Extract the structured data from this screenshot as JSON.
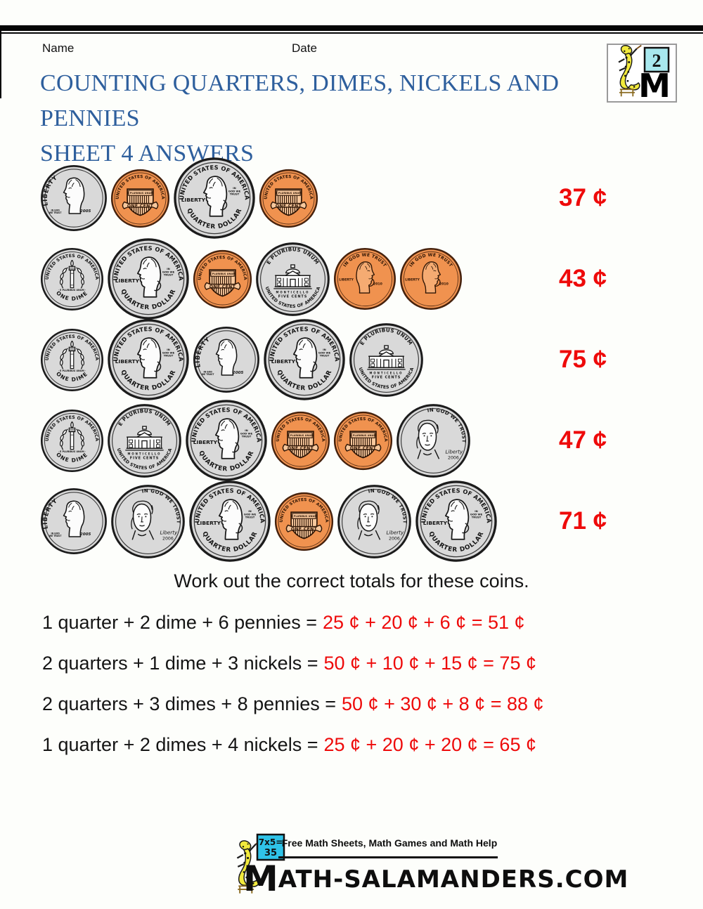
{
  "page": {
    "name_label": "Name",
    "date_label": "Date",
    "title_line1": "COUNTING QUARTERS, DIMES, NICKELS AND PENNIES",
    "title_line2": "SHEET 4 ANSWERS",
    "instruction": "Work out the correct totals for these coins."
  },
  "colors": {
    "title_blue": "#2e5f9d",
    "answer_red": "#ee0a0a",
    "silver_fill": "#d9d9d9",
    "silver_rim": "#1c1c1c",
    "penny_fill": "#f0924f",
    "penny_rim": "#46220d",
    "penny_light": "#f7c89d",
    "penny_dark": "#2e1505"
  },
  "logo": {
    "grade": "2",
    "monogram": "M"
  },
  "coin_text": {
    "quarter": {
      "top": "UNITED STATES OF AMERICA",
      "bottom": "QUARTER DOLLAR",
      "left": "LIBERTY",
      "motto": "IN GOD WE TRUST"
    },
    "dime_obverse": {
      "left": "LIBERTY",
      "motto": "IN GOD WE TRUST",
      "year": "2005",
      "mint": "D"
    },
    "dime_reverse": {
      "top": "UNITED STATES OF AMERICA",
      "bottom": "ONE DIME",
      "motto": "E PLURIBUS UNUM"
    },
    "penny_reverse": {
      "top": "UNITED STATES OF AMERICA",
      "banner": "E PLURIBUS UNUM",
      "denom": "ONE CENT"
    },
    "penny_obverse": {
      "top": "IN GOD WE TRUST",
      "left": "LIBERTY",
      "year": "2010"
    },
    "nickel_reverse": {
      "top": "E PLURIBUS UNUM",
      "building": "MONTICELLO",
      "denom": "FIVE CENTS",
      "bottom": "UNITED STATES OF AMERICA"
    },
    "nickel_obverse": {
      "top": "IN GOD WE TRUST",
      "script": "Liberty",
      "year": "2006"
    }
  },
  "coin_rows": [
    {
      "coins": [
        "dime-obverse",
        "penny-reverse",
        "quarter",
        "penny-reverse"
      ],
      "total": "37 ¢"
    },
    {
      "coins": [
        "dime-reverse",
        "quarter",
        "penny-reverse",
        "nickel-reverse",
        "penny-obverse",
        "penny-obverse"
      ],
      "total": "43 ¢"
    },
    {
      "coins": [
        "dime-reverse",
        "quarter",
        "dime-obverse",
        "quarter",
        "nickel-reverse"
      ],
      "total": "75 ¢"
    },
    {
      "coins": [
        "dime-reverse",
        "nickel-reverse",
        "quarter",
        "penny-reverse",
        "penny-reverse",
        "nickel-obverse"
      ],
      "total": "47 ¢"
    },
    {
      "coins": [
        "dime-obverse",
        "nickel-obverse",
        "quarter",
        "penny-reverse",
        "nickel-obverse",
        "quarter"
      ],
      "total": "71 ¢"
    }
  ],
  "problems": [
    {
      "question": "1 quarter + 2 dime + 6 pennies =",
      "answer": "25 ¢ + 20 ¢ + 6 ¢ = 51 ¢"
    },
    {
      "question": "2 quarters + 1 dime + 3 nickels =",
      "answer": "50 ¢ + 10 ¢ + 15 ¢ = 75 ¢"
    },
    {
      "question": "2 quarters + 3 dimes + 8 pennies =",
      "answer": "50 ¢ + 30 ¢ + 8 ¢ = 88 ¢"
    },
    {
      "question": "1 quarter + 2 dimes + 4 nickels =",
      "answer": "25 ¢ + 20 ¢ + 20 ¢ = 65 ¢"
    }
  ],
  "footer": {
    "board_line1": "7x5=",
    "board_line2": "35",
    "tagline": "Free Math Sheets, Math Games and Math Help",
    "site_m": "M",
    "site_rest": "ATH-SALAMANDERS.COM"
  }
}
